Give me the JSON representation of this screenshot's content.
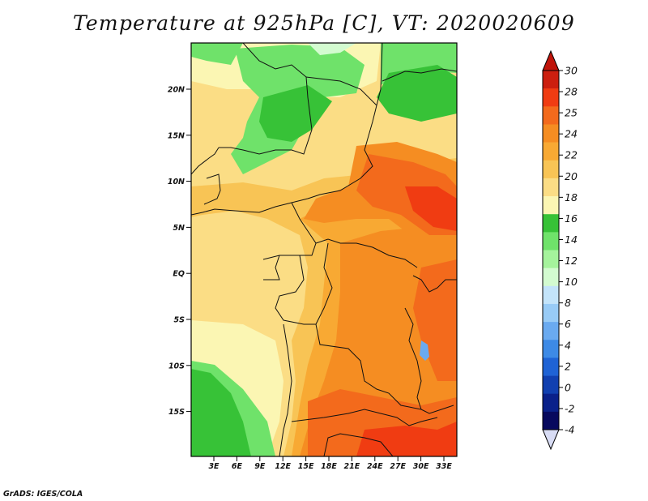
{
  "title": "Temperature at 925hPa [C], VT: 2020020609",
  "credit": "GrADS: IGES/COLA",
  "map": {
    "lat_labels": [
      "20N",
      "15N",
      "10N",
      "5N",
      "EQ",
      "5S",
      "10S",
      "15S"
    ],
    "lon_labels": [
      "3E",
      "6E",
      "9E",
      "12E",
      "15E",
      "18E",
      "21E",
      "24E",
      "27E",
      "30E",
      "33E"
    ]
  },
  "colorbar": {
    "labels": [
      "30",
      "28",
      "25",
      "24",
      "22",
      "20",
      "18",
      "16",
      "14",
      "12",
      "10",
      "8",
      "6",
      "4",
      "2",
      "0",
      "-2",
      "-4"
    ],
    "colors": [
      "#cc1f0f",
      "#f03c12",
      "#f36a1c",
      "#f58d22",
      "#f8a933",
      "#f8c455",
      "#fbdd85",
      "#fbf6b3",
      "#37c237",
      "#6fe26a",
      "#a5f39c",
      "#d3fbd0",
      "#c3e4fa",
      "#98cbf6",
      "#6aaaf0",
      "#3d8ae6",
      "#1f63d5",
      "#1140b0",
      "#0a218a",
      "#07095e"
    ],
    "low_end_color": "#d8dcf4",
    "high_end_color": "#c0140a"
  }
}
